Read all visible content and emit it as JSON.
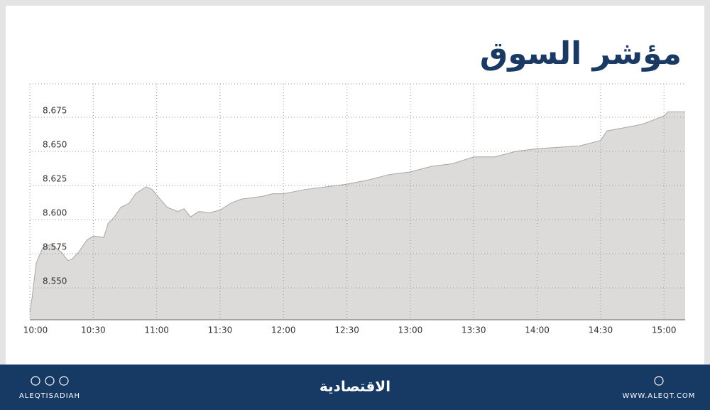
{
  "chart_data": {
    "type": "area",
    "title": "مؤشر السوق",
    "x": [
      "10:00",
      "10:01",
      "10:03",
      "10:06",
      "10:10",
      "10:15",
      "10:18",
      "10:20",
      "10:23",
      "10:27",
      "10:30",
      "10:35",
      "10:37",
      "10:40",
      "10:43",
      "10:47",
      "10:50",
      "10:55",
      "10:58",
      "11:00",
      "11:05",
      "11:10",
      "11:13",
      "11:16",
      "11:20",
      "11:25",
      "11:30",
      "11:35",
      "11:40",
      "11:45",
      "11:50",
      "11:55",
      "12:00",
      "12:10",
      "12:20",
      "12:30",
      "12:40",
      "12:50",
      "13:00",
      "13:10",
      "13:20",
      "13:30",
      "13:40",
      "13:50",
      "14:00",
      "14:10",
      "14:20",
      "14:30",
      "14:33",
      "14:40",
      "14:50",
      "15:00",
      "15:02",
      "15:10"
    ],
    "values": [
      8.532,
      8.542,
      8.568,
      8.579,
      8.582,
      8.576,
      8.57,
      8.571,
      8.576,
      8.585,
      8.588,
      8.587,
      8.597,
      8.602,
      8.609,
      8.612,
      8.619,
      8.624,
      8.622,
      8.618,
      8.609,
      8.606,
      8.608,
      8.602,
      8.606,
      8.605,
      8.607,
      8.612,
      8.615,
      8.616,
      8.617,
      8.619,
      8.619,
      8.622,
      8.624,
      8.626,
      8.629,
      8.633,
      8.635,
      8.639,
      8.641,
      8.646,
      8.646,
      8.65,
      8.652,
      8.653,
      8.654,
      8.658,
      8.665,
      8.667,
      8.67,
      8.676,
      8.679,
      8.679
    ],
    "color": "#dddbda",
    "xlim": [
      "10:00",
      "15:10"
    ],
    "xticks": [
      "10:00",
      "10:30",
      "11:00",
      "11:30",
      "12:00",
      "12:30",
      "13:00",
      "13:30",
      "14:00",
      "14:30",
      "15:00"
    ],
    "ylim": [
      8.5266,
      8.6995
    ],
    "yticks": [
      {
        "value": 8.55,
        "label": "8.550"
      },
      8.575,
      {
        "value": 8.6,
        "label": "8.600"
      },
      8.625,
      {
        "value": 8.65,
        "label": "8.650"
      },
      8.675
    ],
    "grid": true
  },
  "footer": {
    "handle": "ALEQTISADIAH",
    "brand": "الاقتصادية",
    "website": "WWW.ALEQT.COM"
  }
}
